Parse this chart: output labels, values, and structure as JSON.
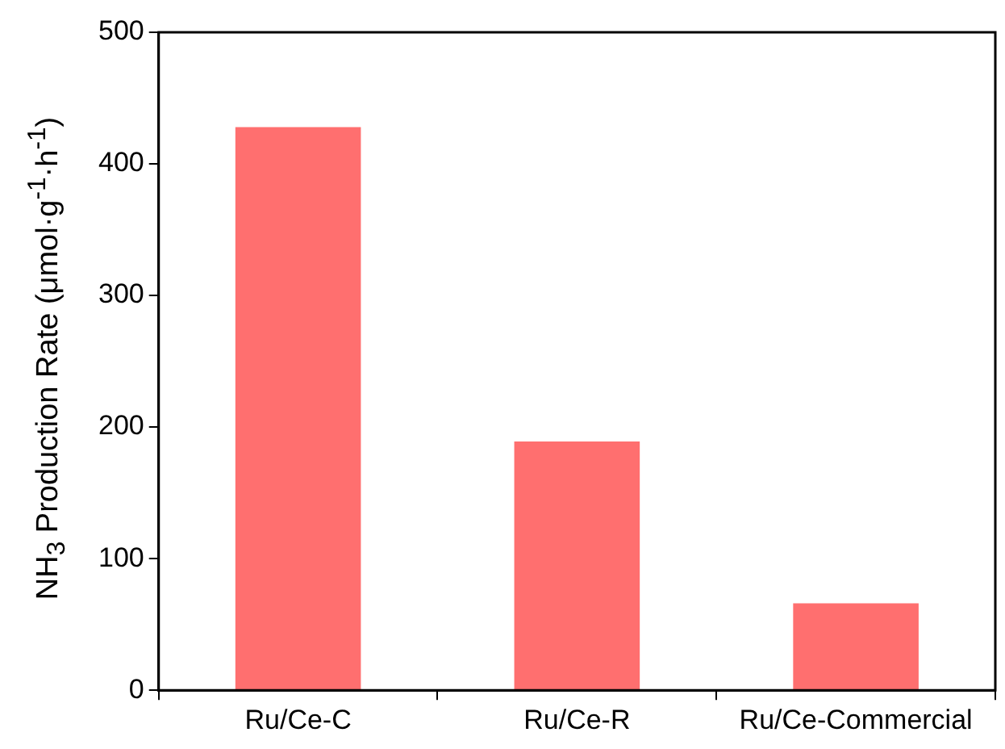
{
  "chart_data": {
    "type": "bar",
    "ylabel": "NH$_{3}$ Production Rate (μmol·g$^{-1}$·h$^{-1}$)",
    "categories": [
      "Ru/Ce-C",
      "Ru/Ce-R",
      "Ru/Ce-Commercial"
    ],
    "values": [
      428,
      189,
      66
    ],
    "color": "#ff6f6f",
    "ylim": [
      0,
      500
    ],
    "yticks": [
      0,
      100,
      200,
      300,
      400,
      500
    ],
    "grid": false,
    "legend": false
  }
}
